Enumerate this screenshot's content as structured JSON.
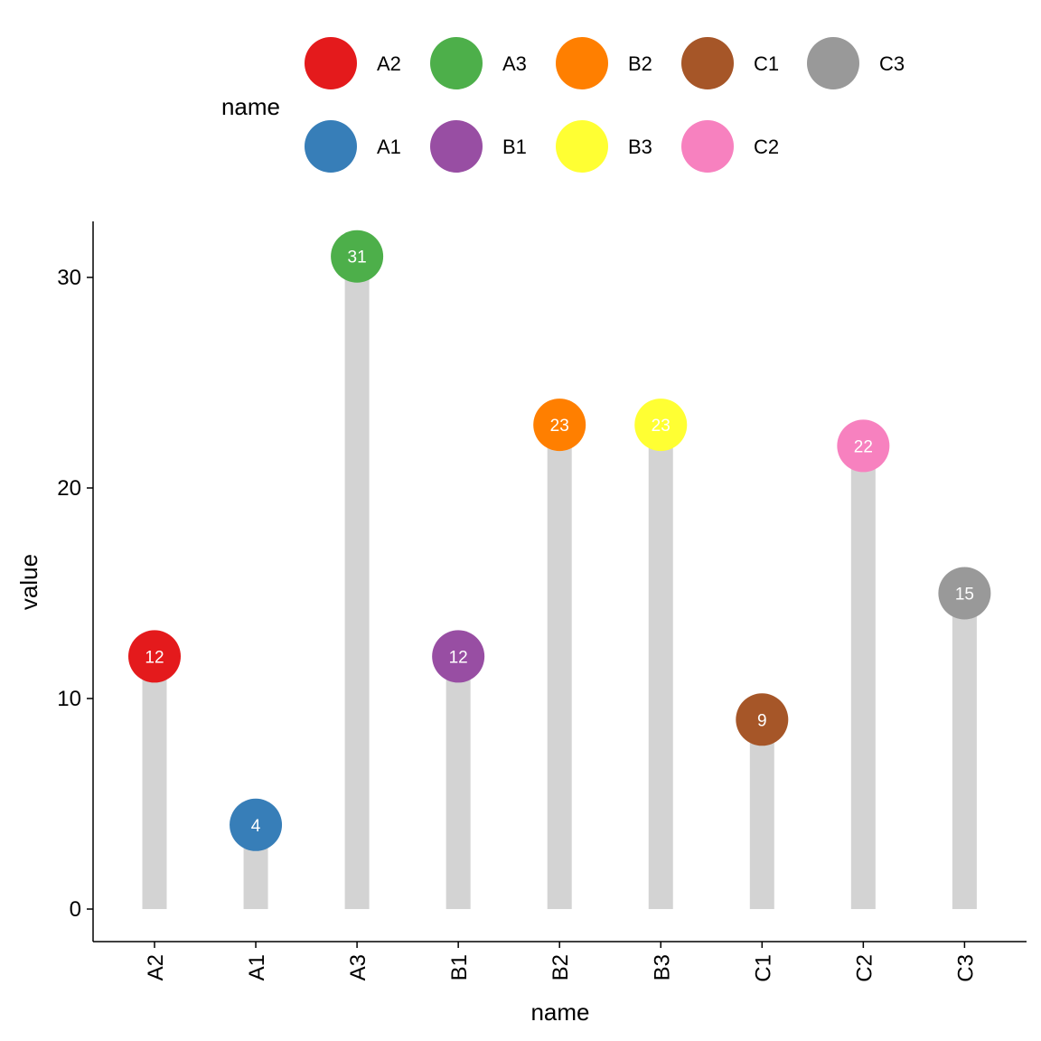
{
  "chart_data": {
    "type": "lollipop",
    "categories": [
      "A2",
      "A1",
      "A3",
      "B1",
      "B2",
      "B3",
      "C1",
      "C2",
      "C3"
    ],
    "values": [
      12,
      4,
      31,
      12,
      23,
      23,
      9,
      22,
      15
    ],
    "point_labels": [
      "12",
      "4",
      "31",
      "12",
      "23",
      "23",
      "9",
      "22",
      "15"
    ],
    "colors": [
      "#E41A1C",
      "#377EB8",
      "#4DAF4A",
      "#984EA3",
      "#FF7F00",
      "#FFFF33",
      "#A65628",
      "#F781BF",
      "#999999"
    ],
    "stem_color": "#D3D3D3",
    "xlabel": "name",
    "ylabel": "value",
    "ylim": [
      -1.5,
      32.7
    ],
    "y_ticks": [
      0,
      10,
      20,
      30
    ],
    "y_tick_labels": [
      "0",
      "10",
      "20",
      "30"
    ],
    "grid": false,
    "legend": {
      "title": "name",
      "position": "top",
      "rows": [
        [
          {
            "label": "A2",
            "color": "#E41A1C"
          },
          {
            "label": "A3",
            "color": "#4DAF4A"
          },
          {
            "label": "B2",
            "color": "#FF7F00"
          },
          {
            "label": "C1",
            "color": "#A65628"
          },
          {
            "label": "C3",
            "color": "#999999"
          }
        ],
        [
          {
            "label": "A1",
            "color": "#377EB8"
          },
          {
            "label": "B1",
            "color": "#984EA3"
          },
          {
            "label": "B3",
            "color": "#FFFF33"
          },
          {
            "label": "C2",
            "color": "#F781BF"
          }
        ]
      ]
    }
  }
}
